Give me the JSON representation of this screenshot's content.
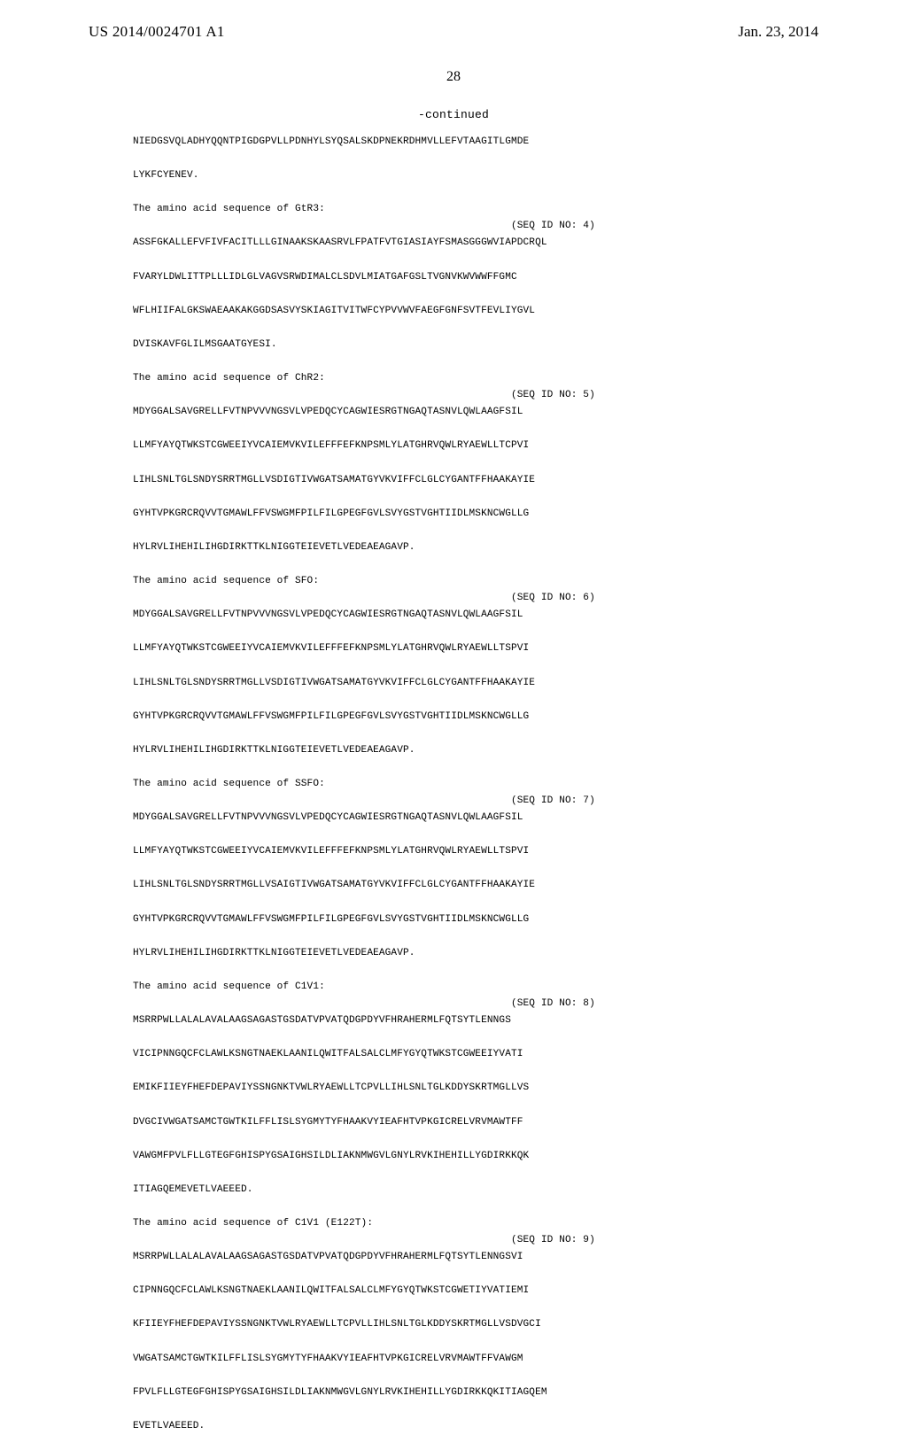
{
  "header": {
    "left": "US 2014/0024701 A1",
    "right": "Jan. 23, 2014",
    "page_number": "28"
  },
  "continued_label": "-continued",
  "blocks": [
    {
      "lines": [
        "NIEDGSVQLADHYQQNTPIGDGPVLLPDNHYLSYQSALSKDPNEKRDHMVLLEFVTAAGITLGMDE",
        "",
        "LYKFCYENEV."
      ]
    },
    {
      "title": "The amino acid sequence of GtR3:",
      "seq_id": "(SEQ ID NO: 4)",
      "lines": [
        "ASSFGKALLEFVFIVFACITLLLGINAAKSKAASRVLFPATFVTGIASIAYFSMASGGGWVIAPDCRQL",
        "",
        "FVARYLDWLITTPLLLIDLGLVAGVSRWDIMALCLSDVLMIATGAFGSLTVGNVKWVWWFFGMC",
        "",
        "WFLHIIFALGKSWAEAAKAKGGDSASVYSKIAGITVITWFCYPVVWVFAEGFGNFSVTFEVLIYGVL",
        "",
        "DVISKAVFGLILMSGAATGYESI."
      ]
    },
    {
      "title": "The amino acid sequence of ChR2:",
      "seq_id": "(SEQ ID NO: 5)",
      "lines": [
        "MDYGGALSAVGRELLFVTNPVVVNGSVLVPEDQCYCAGWIESRGTNGAQTASNVLQWLAAGFSIL",
        "",
        "LLMFYAYQTWKSTCGWEEIYVCAIEMVKVILEFFFEFKNPSMLYLATGHRVQWLRYAEWLLTCPVI",
        "",
        "LIHLSNLTGLSNDYSRRTMGLLVSDIGTIVWGATSAMATGYVKVIFFCLGLCYGANTFFHAAKAYIE",
        "",
        "GYHTVPKGRCRQVVTGMAWLFFVSWGMFPILFILGPEGFGVLSVYGSTVGHTIIDLMSKNCWGLLG",
        "",
        "HYLRVLIHEHILIHGDIRKTTKLNIGGTEIEVETLVEDEAEAGAVP."
      ]
    },
    {
      "title": "The amino acid sequence of SFO:",
      "seq_id": "(SEQ ID NO: 6)",
      "lines": [
        "MDYGGALSAVGRELLFVTNPVVVNGSVLVPEDQCYCAGWIESRGTNGAQTASNVLQWLAAGFSIL",
        "",
        "LLMFYAYQTWKSTCGWEEIYVCAIEMVKVILEFFFEFKNPSMLYLATGHRVQWLRYAEWLLTSPVI",
        "",
        "LIHLSNLTGLSNDYSRRTMGLLVSDIGTIVWGATSAMATGYVKVIFFCLGLCYGANTFFHAAKAYIE",
        "",
        "GYHTVPKGRCRQVVTGMAWLFFVSWGMFPILFILGPEGFGVLSVYGSTVGHTIIDLMSKNCWGLLG",
        "",
        "HYLRVLIHEHILIHGDIRKTTKLNIGGTEIEVETLVEDEAEAGAVP."
      ]
    },
    {
      "title": "The amino acid sequence of SSFO:",
      "seq_id": "(SEQ ID NO: 7)",
      "lines": [
        "MDYGGALSAVGRELLFVTNPVVVNGSVLVPEDQCYCAGWIESRGTNGAQTASNVLQWLAAGFSIL",
        "",
        "LLMFYAYQTWKSTCGWEEIYVCAIEMVKVILEFFFEFKNPSMLYLATGHRVQWLRYAEWLLTSPVI",
        "",
        "LIHLSNLTGLSNDYSRRTMGLLVSAIGTIVWGATSAMATGYVKVIFFCLGLCYGANTFFHAAKAYIE",
        "",
        "GYHTVPKGRCRQVVTGMAWLFFVSWGMFPILFILGPEGFGVLSVYGSTVGHTIIDLMSKNCWGLLG",
        "",
        "HYLRVLIHEHILIHGDIRKTTKLNIGGTEIEVETLVEDEAEAGAVP."
      ]
    },
    {
      "title": "The amino acid sequence of C1V1:",
      "seq_id": "(SEQ ID NO: 8)",
      "lines": [
        "MSRRPWLLALALAVALAAGSAGASTGSDATVPVATQDGPDYVFHRAHERMLFQTSYTLENNGS",
        "",
        "VICIPNNGQCFCLAWLKSNGTNAEKLAANILQWITFALSALCLMFYGYQTWKSTCGWEEIYVATI",
        "",
        "EMIKFIIEYFHEFDEPAVIYSSNGNKTVWLRYAEWLLTCPVLLIHLSNLTGLKDDYSKRTMGLLVS",
        "",
        "DVGCIVWGATSAMCTGWTKILFFLISLSYGMYTYFHAAKVYIEAFHTVPKGICRELVRVMAWTFF",
        "",
        "VAWGMFPVLFLLGTEGFGHISPYGSAIGHSILDLIAKNMWGVLGNYLRVKIHEHILLYGDIRKKQK",
        "",
        "ITIAGQEMEVETLVAEEED."
      ]
    },
    {
      "title": "The amino acid sequence of C1V1 (E122T):",
      "seq_id": "(SEQ ID NO: 9)",
      "lines": [
        "MSRRPWLLALALAVALAAGSAGASTGSDATVPVATQDGPDYVFHRAHERMLFQTSYTLENNGSVI",
        "",
        "CIPNNGQCFCLAWLKSNGTNAEKLAANILQWITFALSALCLMFYGYQTWKSTCGWETIYVATIEMI",
        "",
        "KFIIEYFHEFDEPAVIYSSNGNKTVWLRYAEWLLTCPVLLIHLSNLTGLKDDYSKRTMGLLVSDVGCI",
        "",
        "VWGATSAMCTGWTKILFFLISLSYGMYTYFHAAKVYIEAFHTVPKGICRELVRVMAWTFFVAWGM",
        "",
        "FPVLFLLGTEGFGHISPYGSAIGHSILDLIAKNMWGVLGNYLRVKIHEHILLYGDIRKKQKITIAGQEM",
        "",
        "EVETLVAEEED."
      ]
    }
  ]
}
